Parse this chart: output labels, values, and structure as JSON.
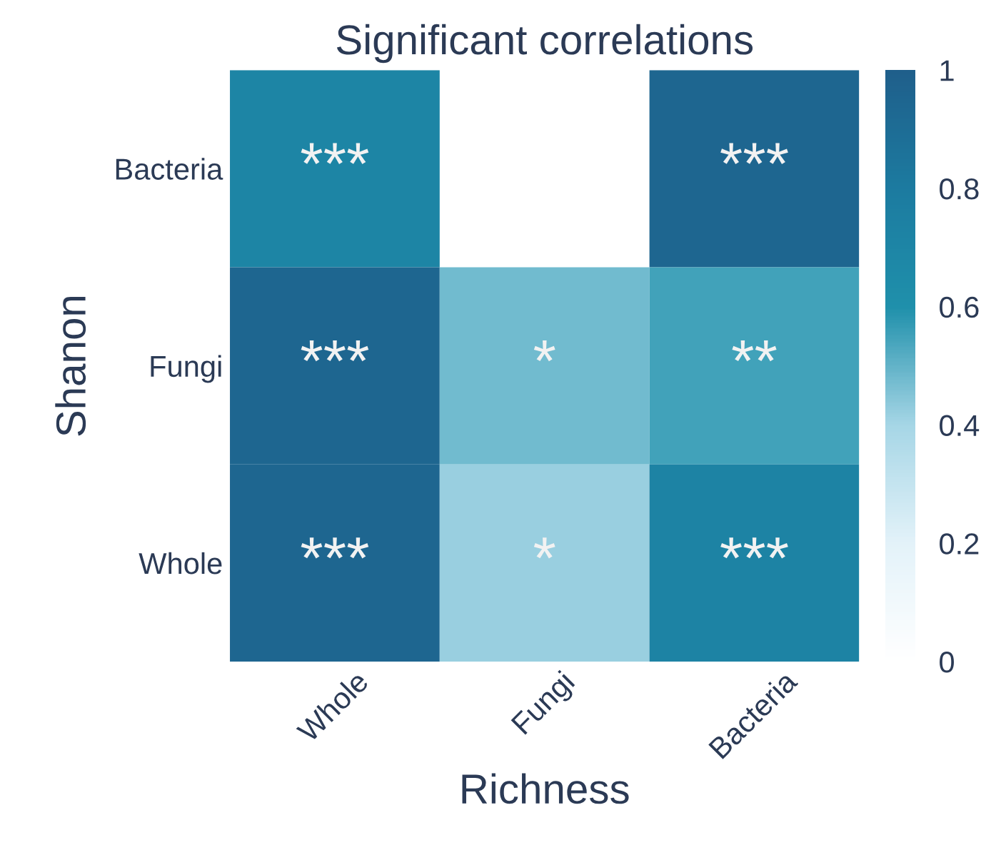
{
  "chart_data": {
    "type": "heatmap",
    "title": "Significant correlations",
    "xlabel": "Richness",
    "ylabel": "Shanon",
    "categories": [
      "Whole",
      "Fungi",
      "Bacteria"
    ],
    "y_categories": [
      "Bacteria",
      "Fungi",
      "Whole"
    ],
    "cells": [
      [
        0.7,
        null,
        0.95
      ],
      [
        0.95,
        0.48,
        0.55
      ],
      [
        0.95,
        0.42,
        0.72
      ]
    ],
    "cell_labels": [
      [
        "***",
        null,
        "***"
      ],
      [
        "***",
        "*",
        "**"
      ],
      [
        "***",
        "*",
        "***"
      ]
    ],
    "clim": [
      0,
      1
    ],
    "cticks": [
      0,
      0.2,
      0.4,
      0.6,
      0.8,
      1
    ]
  }
}
